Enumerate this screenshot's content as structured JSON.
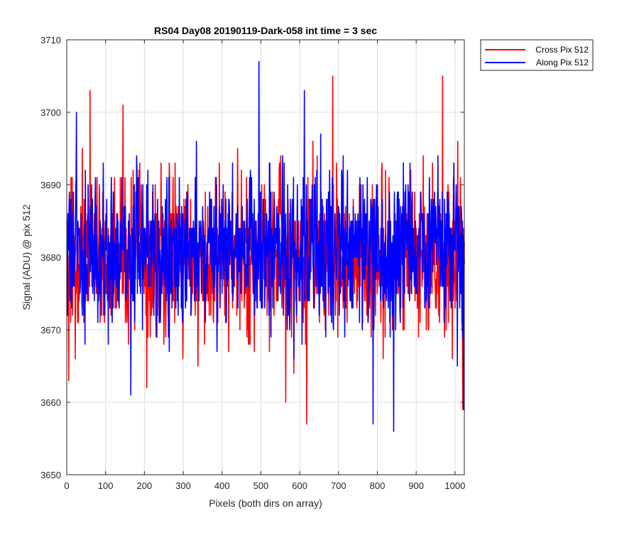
{
  "chart_data": {
    "type": "line",
    "title": "RS04 Day08 20190119-Dark-058 int time = 3 sec",
    "xlabel": "Pixels (both dirs on array)",
    "ylabel": "Signal (ADU) @ pix 512",
    "xlim": [
      0,
      1024
    ],
    "ylim": [
      3650,
      3710
    ],
    "xticks": [
      0,
      100,
      200,
      300,
      400,
      500,
      600,
      700,
      800,
      900,
      1000
    ],
    "yticks": [
      3650,
      3660,
      3670,
      3680,
      3690,
      3700,
      3710
    ],
    "grid": true,
    "legend_position": "outside-top-right",
    "noise_std": 5.5,
    "series": [
      {
        "name": "Cross Pix 512",
        "color": "#ff0000",
        "mean": 3680,
        "x_range": [
          1,
          1024
        ],
        "notable_points": [
          {
            "x": 5,
            "y": 3663
          },
          {
            "x": 60,
            "y": 3703
          },
          {
            "x": 145,
            "y": 3701
          },
          {
            "x": 206,
            "y": 3662
          },
          {
            "x": 564,
            "y": 3660
          },
          {
            "x": 618,
            "y": 3657
          },
          {
            "x": 685,
            "y": 3705
          },
          {
            "x": 968,
            "y": 3705
          },
          {
            "x": 1020,
            "y": 3659
          }
        ]
      },
      {
        "name": "Along Pix 512",
        "color": "#0000ff",
        "mean": 3681,
        "x_range": [
          1,
          1024
        ],
        "notable_points": [
          {
            "x": 25,
            "y": 3700
          },
          {
            "x": 165,
            "y": 3661
          },
          {
            "x": 495,
            "y": 3707
          },
          {
            "x": 612,
            "y": 3703
          },
          {
            "x": 789,
            "y": 3657
          },
          {
            "x": 842,
            "y": 3656
          },
          {
            "x": 1022,
            "y": 3659
          }
        ]
      }
    ]
  },
  "colors": {
    "axis": "#262626",
    "grid": "#dcdcdc",
    "background": "#ffffff"
  }
}
